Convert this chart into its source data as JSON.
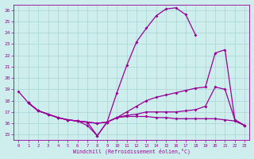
{
  "xlabel": "Windchill (Refroidissement éolien,°C)",
  "xlim": [
    -0.5,
    23.5
  ],
  "ylim": [
    14.5,
    26.5
  ],
  "bg_color": "#ceeeed",
  "grid_color": "#a8d4d4",
  "line_color": "#990099",
  "curve1_x": [
    0,
    1,
    2,
    3,
    4,
    5,
    6,
    7,
    8,
    9,
    10,
    11,
    12,
    13,
    14,
    15,
    16,
    17,
    18
  ],
  "curve1_y": [
    18.8,
    17.8,
    17.1,
    16.8,
    16.5,
    16.3,
    16.2,
    15.8,
    14.9,
    16.1,
    18.7,
    21.1,
    23.2,
    24.4,
    25.5,
    26.1,
    26.2,
    25.6,
    23.8
  ],
  "curve2_x": [
    1,
    2,
    3,
    4,
    5,
    6,
    7,
    8,
    9,
    10,
    11,
    12,
    13,
    14,
    15,
    16,
    17,
    18,
    19,
    20,
    21,
    22,
    23
  ],
  "curve2_y": [
    17.8,
    17.1,
    16.8,
    16.5,
    16.3,
    16.2,
    16.1,
    16.0,
    16.1,
    16.5,
    17.0,
    17.5,
    18.0,
    18.3,
    18.5,
    18.7,
    18.9,
    19.1,
    19.2,
    22.2,
    22.5,
    16.3,
    15.8
  ],
  "curve3_x": [
    1,
    2,
    3,
    4,
    5,
    6,
    7,
    8,
    9,
    10,
    11,
    12,
    13,
    14,
    15,
    16,
    17,
    18,
    19,
    20,
    21,
    22,
    23
  ],
  "curve3_y": [
    17.8,
    17.1,
    16.8,
    16.5,
    16.3,
    16.2,
    16.1,
    16.0,
    16.1,
    16.5,
    16.7,
    16.8,
    17.0,
    17.0,
    17.0,
    17.0,
    17.1,
    17.2,
    17.5,
    19.2,
    19.0,
    16.3,
    15.8
  ],
  "curve4_x": [
    1,
    2,
    3,
    4,
    5,
    6,
    7,
    8,
    9,
    10,
    11,
    12,
    13,
    14,
    15,
    16,
    17,
    18,
    19,
    20,
    21,
    22,
    23
  ],
  "curve4_y": [
    17.8,
    17.1,
    16.8,
    16.5,
    16.3,
    16.2,
    16.1,
    14.9,
    16.1,
    16.5,
    16.6,
    16.6,
    16.6,
    16.5,
    16.5,
    16.4,
    16.4,
    16.4,
    16.4,
    16.4,
    16.3,
    16.2,
    15.8
  ],
  "xticks": [
    0,
    1,
    2,
    3,
    4,
    5,
    6,
    7,
    8,
    9,
    10,
    11,
    12,
    13,
    14,
    15,
    16,
    17,
    18,
    19,
    20,
    21,
    22,
    23
  ],
  "yticks": [
    15,
    16,
    17,
    18,
    19,
    20,
    21,
    22,
    23,
    24,
    25,
    26
  ]
}
